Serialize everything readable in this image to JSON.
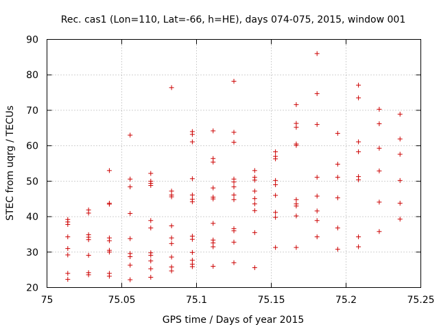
{
  "chart_data": {
    "type": "scatter",
    "title": "Rec. cas1 (Lon=110, Lat=-66, h=HE), days 074-075, 2015, window 001",
    "xlabel": "GPS time / Days of year 2015",
    "ylabel": "STEC from uqrg / TECUs",
    "xlim": [
      75,
      75.25
    ],
    "ylim": [
      20,
      90
    ],
    "xticks": [
      75,
      75.05,
      75.1,
      75.15,
      75.2,
      75.25
    ],
    "xtick_labels": [
      "75",
      "75.05",
      "75.1",
      "75.15",
      "75.2",
      "75.25"
    ],
    "yticks": [
      20,
      30,
      40,
      50,
      60,
      70,
      80,
      90
    ],
    "ytick_labels": [
      "20",
      "30",
      "40",
      "50",
      "60",
      "70",
      "80",
      "90"
    ],
    "grid": true,
    "marker": "+",
    "color": "#cc0000",
    "series": [
      {
        "name": "STEC",
        "points": [
          [
            75.0139,
            22.3
          ],
          [
            75.0139,
            24.0
          ],
          [
            75.0139,
            29.2
          ],
          [
            75.0139,
            31.0
          ],
          [
            75.0139,
            34.3
          ],
          [
            75.0139,
            37.8
          ],
          [
            75.0139,
            38.5
          ],
          [
            75.0139,
            39.2
          ],
          [
            75.0278,
            23.6
          ],
          [
            75.0278,
            24.2
          ],
          [
            75.0278,
            29.1
          ],
          [
            75.0278,
            33.5
          ],
          [
            75.0278,
            34.2
          ],
          [
            75.0278,
            34.9
          ],
          [
            75.0278,
            41.0
          ],
          [
            75.0278,
            41.9
          ],
          [
            75.0417,
            23.2
          ],
          [
            75.0417,
            24.0
          ],
          [
            75.0417,
            30.0
          ],
          [
            75.0417,
            30.5
          ],
          [
            75.0417,
            33.2
          ],
          [
            75.0417,
            34.0
          ],
          [
            75.0417,
            43.5
          ],
          [
            75.0417,
            43.8
          ],
          [
            75.0417,
            53.0
          ],
          [
            75.0556,
            22.2
          ],
          [
            75.0556,
            26.3
          ],
          [
            75.0556,
            28.7
          ],
          [
            75.0556,
            29.6
          ],
          [
            75.0556,
            33.8
          ],
          [
            75.0556,
            40.9
          ],
          [
            75.0556,
            48.4
          ],
          [
            75.0556,
            50.6
          ],
          [
            75.0556,
            63.0
          ],
          [
            75.0694,
            22.9
          ],
          [
            75.0694,
            25.3
          ],
          [
            75.0694,
            27.5
          ],
          [
            75.0694,
            29.1
          ],
          [
            75.0694,
            29.8
          ],
          [
            75.0694,
            36.8
          ],
          [
            75.0694,
            38.9
          ],
          [
            75.0694,
            48.8
          ],
          [
            75.0694,
            49.4
          ],
          [
            75.0694,
            50.0
          ],
          [
            75.0694,
            52.2
          ],
          [
            75.0833,
            24.7
          ],
          [
            75.0833,
            25.8
          ],
          [
            75.0833,
            28.6
          ],
          [
            75.0833,
            32.4
          ],
          [
            75.0833,
            34.0
          ],
          [
            75.0833,
            37.4
          ],
          [
            75.0833,
            45.6
          ],
          [
            75.0833,
            46.1
          ],
          [
            75.0833,
            47.2
          ],
          [
            75.0833,
            76.4
          ],
          [
            75.0972,
            25.9
          ],
          [
            75.0972,
            26.6
          ],
          [
            75.0972,
            27.7
          ],
          [
            75.0972,
            29.9
          ],
          [
            75.0972,
            33.6
          ],
          [
            75.0972,
            34.5
          ],
          [
            75.0972,
            44.2
          ],
          [
            75.0972,
            44.9
          ],
          [
            75.0972,
            46.1
          ],
          [
            75.0972,
            50.7
          ],
          [
            75.0972,
            61.1
          ],
          [
            75.0972,
            63.2
          ],
          [
            75.0972,
            64.0
          ],
          [
            75.1111,
            26.0
          ],
          [
            75.1111,
            31.5
          ],
          [
            75.1111,
            32.6
          ],
          [
            75.1111,
            33.4
          ],
          [
            75.1111,
            38.1
          ],
          [
            75.1111,
            45.0
          ],
          [
            75.1111,
            45.5
          ],
          [
            75.1111,
            48.1
          ],
          [
            75.1111,
            55.4
          ],
          [
            75.1111,
            56.4
          ],
          [
            75.1111,
            64.2
          ],
          [
            75.125,
            27.0
          ],
          [
            75.125,
            32.8
          ],
          [
            75.125,
            36.0
          ],
          [
            75.125,
            36.6
          ],
          [
            75.125,
            44.8
          ],
          [
            75.125,
            46.1
          ],
          [
            75.125,
            48.4
          ],
          [
            75.125,
            49.8
          ],
          [
            75.125,
            50.6
          ],
          [
            75.125,
            61.0
          ],
          [
            75.125,
            63.8
          ],
          [
            75.125,
            78.2
          ],
          [
            75.1389,
            25.6
          ],
          [
            75.1389,
            35.5
          ],
          [
            75.1389,
            41.7
          ],
          [
            75.1389,
            43.6
          ],
          [
            75.1389,
            45.1
          ],
          [
            75.1389,
            47.2
          ],
          [
            75.1389,
            50.3
          ],
          [
            75.1389,
            51.1
          ],
          [
            75.1389,
            53.0
          ],
          [
            75.1528,
            31.3
          ],
          [
            75.1528,
            39.8
          ],
          [
            75.1528,
            41.2
          ],
          [
            75.1528,
            46.0
          ],
          [
            75.1528,
            49.0
          ],
          [
            75.1528,
            50.2
          ],
          [
            75.1528,
            56.3
          ],
          [
            75.1528,
            57.0
          ],
          [
            75.1528,
            58.3
          ],
          [
            75.1667,
            31.3
          ],
          [
            75.1667,
            40.2
          ],
          [
            75.1667,
            43.0
          ],
          [
            75.1667,
            43.6
          ],
          [
            75.1667,
            44.8
          ],
          [
            75.1667,
            60.1
          ],
          [
            75.1667,
            60.5
          ],
          [
            75.1667,
            65.2
          ],
          [
            75.1667,
            66.3
          ],
          [
            75.1667,
            71.6
          ],
          [
            75.1806,
            34.3
          ],
          [
            75.1806,
            38.9
          ],
          [
            75.1806,
            41.6
          ],
          [
            75.1806,
            45.8
          ],
          [
            75.1806,
            51.1
          ],
          [
            75.1806,
            66.0
          ],
          [
            75.1806,
            74.7
          ],
          [
            75.1806,
            86.0
          ],
          [
            75.1944,
            30.8
          ],
          [
            75.1944,
            36.8
          ],
          [
            75.1944,
            45.3
          ],
          [
            75.1944,
            51.1
          ],
          [
            75.1944,
            54.8
          ],
          [
            75.1944,
            63.5
          ],
          [
            75.2083,
            31.5
          ],
          [
            75.2083,
            34.3
          ],
          [
            75.2083,
            50.4
          ],
          [
            75.2083,
            51.3
          ],
          [
            75.2083,
            58.3
          ],
          [
            75.2083,
            61.1
          ],
          [
            75.2083,
            73.5
          ],
          [
            75.2083,
            77.1
          ],
          [
            75.2222,
            35.8
          ],
          [
            75.2222,
            44.1
          ],
          [
            75.2222,
            52.9
          ],
          [
            75.2222,
            59.3
          ],
          [
            75.2222,
            66.2
          ],
          [
            75.2222,
            70.3
          ],
          [
            75.2361,
            39.3
          ],
          [
            75.2361,
            43.8
          ],
          [
            75.2361,
            50.2
          ],
          [
            75.2361,
            57.6
          ],
          [
            75.2361,
            61.9
          ],
          [
            75.2361,
            68.9
          ]
        ]
      }
    ]
  }
}
